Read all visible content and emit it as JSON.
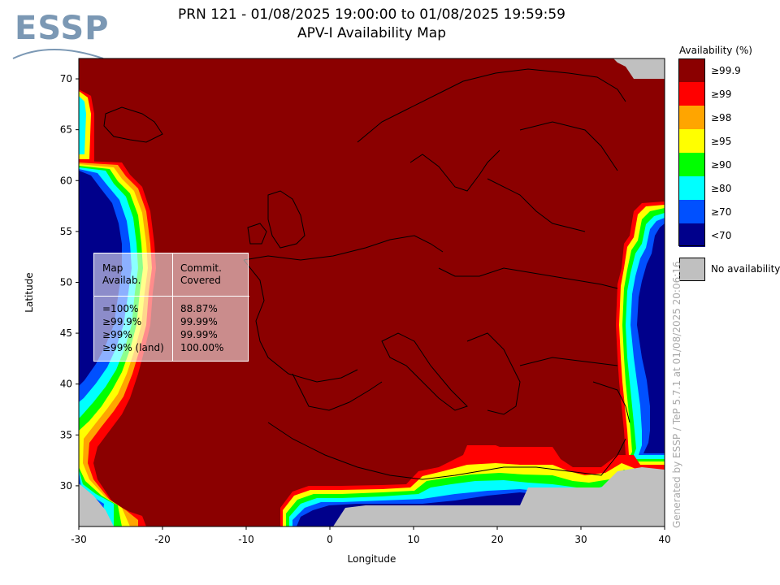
{
  "header": {
    "title_line1": "PRN 121 - 01/08/2025 19:00:00 to 01/08/2025 19:59:59",
    "title_line2": "APV-I Availability Map",
    "logo_text": "ESSP"
  },
  "axes": {
    "xlabel": "Longitude",
    "ylabel": "Latitude",
    "xlim": [
      -30,
      40
    ],
    "ylim": [
      26,
      72
    ],
    "x_ticks": [
      -30,
      -20,
      -10,
      0,
      10,
      20,
      30,
      40
    ],
    "y_ticks": [
      30,
      35,
      40,
      45,
      50,
      55,
      60,
      65,
      70
    ]
  },
  "legend": {
    "title": "Availability (%)",
    "items": [
      {
        "label": "≥99.9",
        "color": "#8b0000"
      },
      {
        "label": "≥99",
        "color": "#ff0000"
      },
      {
        "label": "≥98",
        "color": "#ffa500"
      },
      {
        "label": "≥95",
        "color": "#ffff00"
      },
      {
        "label": "≥90",
        "color": "#00ff00"
      },
      {
        "label": "≥80",
        "color": "#00ffff"
      },
      {
        "label": "≥70",
        "color": "#0050ff"
      },
      {
        "label": "<70",
        "color": "#00008b"
      }
    ],
    "no_availability": {
      "label": "No availability",
      "color": "#c0c0c0"
    }
  },
  "stats": {
    "col1_header": [
      "Map",
      "Availab."
    ],
    "col2_header": [
      "Commit.",
      "Covered"
    ],
    "rows": [
      {
        "level": "=100%",
        "covered": "88.87%"
      },
      {
        "level": "≥99.9%",
        "covered": "99.99%"
      },
      {
        "level": "≥99%",
        "covered": "99.99%"
      },
      {
        "level": "≥99% (land)",
        "covered": "100.00%"
      }
    ]
  },
  "footer": {
    "generated": "Generated by ESSP / TeP 5.7.1 at 01/08/2025 20:06:16"
  }
}
